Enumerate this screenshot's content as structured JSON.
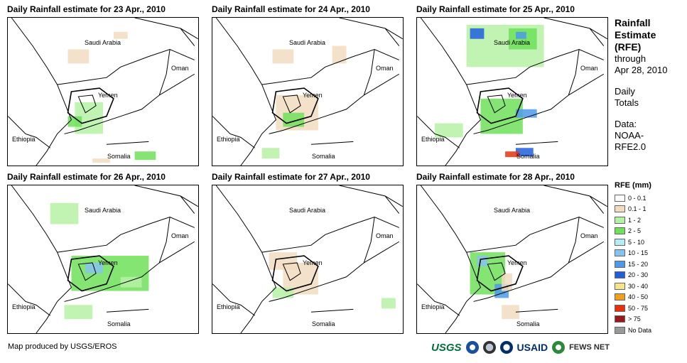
{
  "panels": [
    {
      "title": "Daily Rainfall estimate for 23 Apr., 2010"
    },
    {
      "title": "Daily Rainfall estimate for 24 Apr., 2010"
    },
    {
      "title": "Daily Rainfall estimate for 25 Apr., 2010"
    },
    {
      "title": "Daily Rainfall estimate for 26 Apr., 2010"
    },
    {
      "title": "Daily Rainfall estimate for 27 Apr., 2010"
    },
    {
      "title": "Daily Rainfall estimate for 28 Apr., 2010"
    }
  ],
  "countries": {
    "saudi": "Saudi Arabia",
    "oman": "Oman",
    "yemen": "Yemen",
    "ethiopia": "Ethiopia",
    "somalia": "Somalia"
  },
  "side": {
    "line1": "Rainfall",
    "line2": "Estimate",
    "line3": "(RFE)",
    "line4": "through",
    "line5": "Apr 28, 2010",
    "line6": "Daily",
    "line7": "Totals",
    "line8": "Data:",
    "line9": "NOAA-",
    "line10": "RFE2.0"
  },
  "legend": {
    "title": "RFE (mm)",
    "items": [
      {
        "label": "0 - 0.1",
        "color": "#ffffff"
      },
      {
        "label": "0.1 - 1",
        "color": "#f2dcc0"
      },
      {
        "label": "1 - 2",
        "color": "#b6f2a6"
      },
      {
        "label": "2 - 5",
        "color": "#6ee05a"
      },
      {
        "label": "5 - 10",
        "color": "#b6ecf6"
      },
      {
        "label": "10 - 15",
        "color": "#86c3f0"
      },
      {
        "label": "15 - 20",
        "color": "#4f9ae8"
      },
      {
        "label": "20 - 30",
        "color": "#1f5fdc"
      },
      {
        "label": "30 - 40",
        "color": "#f6e48a"
      },
      {
        "label": "40 - 50",
        "color": "#f0a020"
      },
      {
        "label": "50 - 75",
        "color": "#e83010"
      },
      {
        "label": "> 75",
        "color": "#9a1818"
      },
      {
        "label": "No Data",
        "color": "#999999"
      }
    ]
  },
  "credit": "Map produced by USGS/EROS",
  "logos": {
    "usgs": "USGS",
    "usaid": "USAID",
    "fews": "FEWS NET"
  }
}
